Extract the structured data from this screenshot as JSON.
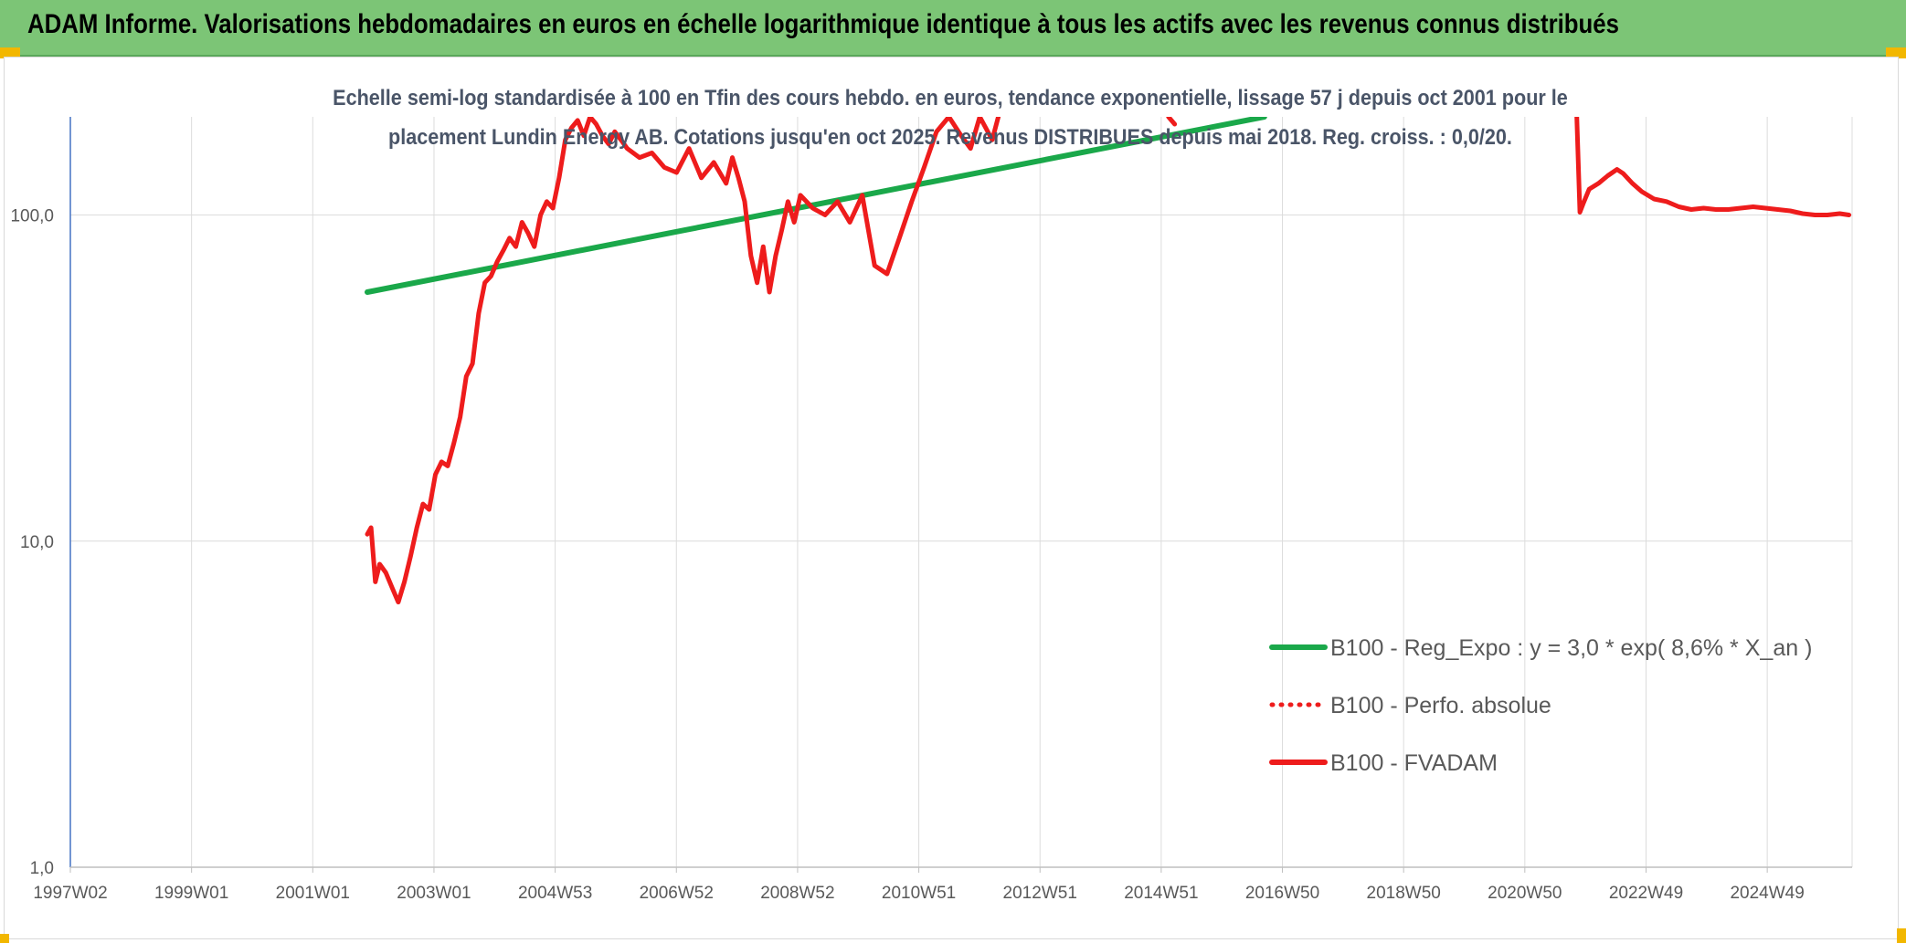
{
  "header": {
    "title": "ADAM Informe. Valorisations hebdomadaires en euros en échelle logarithmique identique à tous les actifs avec les revenus connus distribués"
  },
  "chart_data": {
    "type": "line",
    "title_lines": [
      "Echelle semi-log standardisée à 100 en Tfin des cours hebdo. en euros, tendance exponentielle, lissage 57 j depuis oct 2001 pour le",
      "placement Lundin Energy AB. Cotations jusqu'en oct 2025. Revenus DISTRIBUES depuis mai 2018. Reg. croiss. : 0,0/20."
    ],
    "y_scale": "log",
    "ylim": [
      1,
      200
    ],
    "y_ticks": [
      1,
      10,
      100
    ],
    "y_tick_labels": [
      "1,0",
      "10,0",
      "100,0"
    ],
    "xlim": [
      1997.0,
      2025.8
    ],
    "x_tick_labels": [
      "1997W02",
      "1999W01",
      "2001W01",
      "2003W01",
      "2004W53",
      "2006W52",
      "2008W52",
      "2010W51",
      "2012W51",
      "2014W51",
      "2016W50",
      "2018W50",
      "2020W50",
      "2022W49",
      "2024W49"
    ],
    "grid": true,
    "legend": {
      "position": "right",
      "entries": [
        {
          "label": "B100 - Reg_Expo : y = 3,0 * exp( 8,6% *  X_an )",
          "color": "#1aa84a",
          "style": "solid"
        },
        {
          "label": "B100 - Perfo. absolue",
          "color": "#ee1c1c",
          "style": "dotted"
        },
        {
          "label": "B100 - FVADAM",
          "color": "#ee1c1c",
          "style": "solid"
        }
      ]
    },
    "series": [
      {
        "name": "B100 - Reg_Expo : y = 3,0 * exp( 8,6% *  X_an )",
        "color": "#1aa84a",
        "x": [
          2001.8,
          2016.3
        ],
        "y": [
          58,
          200
        ]
      },
      {
        "name": "B100 - FVADAM",
        "color": "#ee1c1c",
        "segments": [
          {
            "x": [
              2001.8,
              2001.86,
              2001.93,
              2002.0,
              2002.1,
              2002.2,
              2002.3,
              2002.4,
              2002.5,
              2002.6,
              2002.7,
              2002.8,
              2002.9,
              2003.0,
              2003.1,
              2003.2,
              2003.3,
              2003.4,
              2003.5,
              2003.6,
              2003.7,
              2003.8,
              2003.9,
              2004.0,
              2004.1,
              2004.2,
              2004.3,
              2004.4,
              2004.5,
              2004.6,
              2004.7,
              2004.8,
              2004.9,
              2005.0,
              2005.1,
              2005.2,
              2005.3,
              2005.4,
              2005.5,
              2005.6,
              2005.7,
              2005.8,
              2005.9,
              2006.0,
              2006.2,
              2006.4,
              2006.6,
              2006.8,
              2007.0,
              2007.2,
              2007.4,
              2007.6,
              2007.7,
              2007.8,
              2007.9,
              2008.0,
              2008.1,
              2008.2,
              2008.3,
              2008.4,
              2008.5,
              2008.6,
              2008.7,
              2008.8,
              2009.0,
              2009.2,
              2009.4,
              2009.6,
              2009.8,
              2010.0,
              2010.2,
              2010.4,
              2010.6,
              2010.8,
              2011.0,
              2011.2,
              2011.4,
              2011.55,
              2011.7,
              2011.9,
              2012.0
            ],
            "y": [
              10.5,
              11.0,
              7.5,
              8.5,
              8.0,
              7.2,
              6.5,
              7.5,
              9.0,
              11.0,
              13.0,
              12.5,
              16.0,
              17.5,
              17.0,
              20.0,
              24.0,
              32.0,
              35.0,
              50.0,
              62.0,
              65.0,
              72.0,
              78.0,
              85.0,
              80.0,
              95.0,
              88.0,
              80.0,
              100.0,
              110.0,
              105.0,
              130.0,
              170.0,
              185.0,
              195.0,
              175.0,
              200.0,
              190.0,
              175.0,
              165.0,
              180.0,
              170.0,
              160.0,
              150.0,
              155.0,
              140.0,
              135.0,
              160.0,
              130.0,
              145.0,
              125.0,
              150.0,
              130.0,
              110.0,
              75.0,
              62.0,
              80.0,
              58.0,
              75.0,
              90.0,
              110.0,
              95.0,
              115.0,
              105.0,
              100.0,
              110.0,
              95.0,
              115.0,
              70.0,
              66.0,
              85.0,
              110.0,
              140.0,
              180.0,
              200.0,
              175.0,
              160.0,
              200.0,
              170.0,
              200.0
            ]
          },
          {
            "x": [
              2014.75,
              2014.85
            ],
            "y": [
              200,
              190
            ]
          },
          {
            "x": [
              2021.35,
              2021.4,
              2021.45,
              2021.55,
              2021.7,
              2021.85,
              2022.0,
              2022.1,
              2022.25,
              2022.4,
              2022.6,
              2022.8,
              2023.0,
              2023.2,
              2023.4,
              2023.6,
              2023.8,
              2024.0,
              2024.2,
              2024.4,
              2024.6,
              2024.8,
              2025.0,
              2025.2,
              2025.4,
              2025.6,
              2025.75
            ],
            "y": [
              200,
              102,
              108,
              120,
              125,
              132,
              138,
              134,
              125,
              118,
              112,
              110,
              106,
              104,
              105,
              104,
              104,
              105,
              106,
              105,
              104,
              103,
              101,
              100,
              100,
              101,
              100
            ]
          }
        ]
      }
    ]
  }
}
